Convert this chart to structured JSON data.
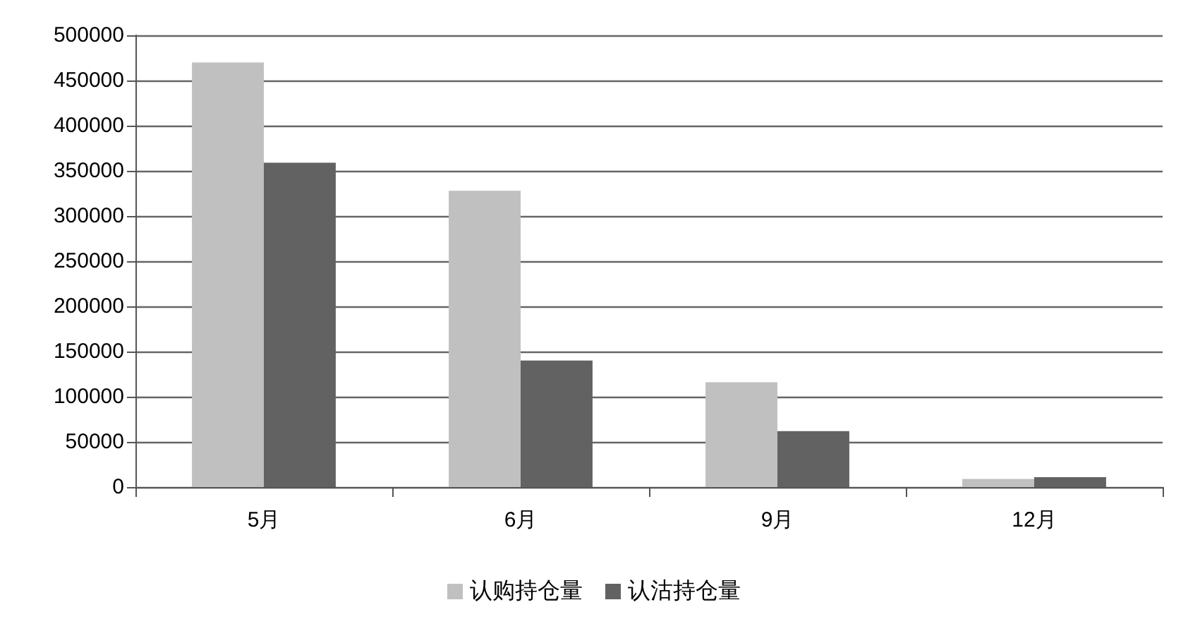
{
  "chart_data": {
    "type": "bar",
    "categories": [
      "5月",
      "6月",
      "9月",
      "12月"
    ],
    "series": [
      {
        "name": "认购持仓量",
        "color": "#c0c0c0",
        "values": [
          470000,
          328000,
          116000,
          9000
        ]
      },
      {
        "name": "认沽持仓量",
        "color": "#626262",
        "values": [
          359000,
          140000,
          62000,
          11000
        ]
      }
    ],
    "ylim": [
      0,
      500000
    ],
    "yticks": [
      0,
      50000,
      100000,
      150000,
      200000,
      250000,
      300000,
      350000,
      400000,
      450000,
      500000
    ],
    "grid": "y",
    "legend": "bottom"
  }
}
